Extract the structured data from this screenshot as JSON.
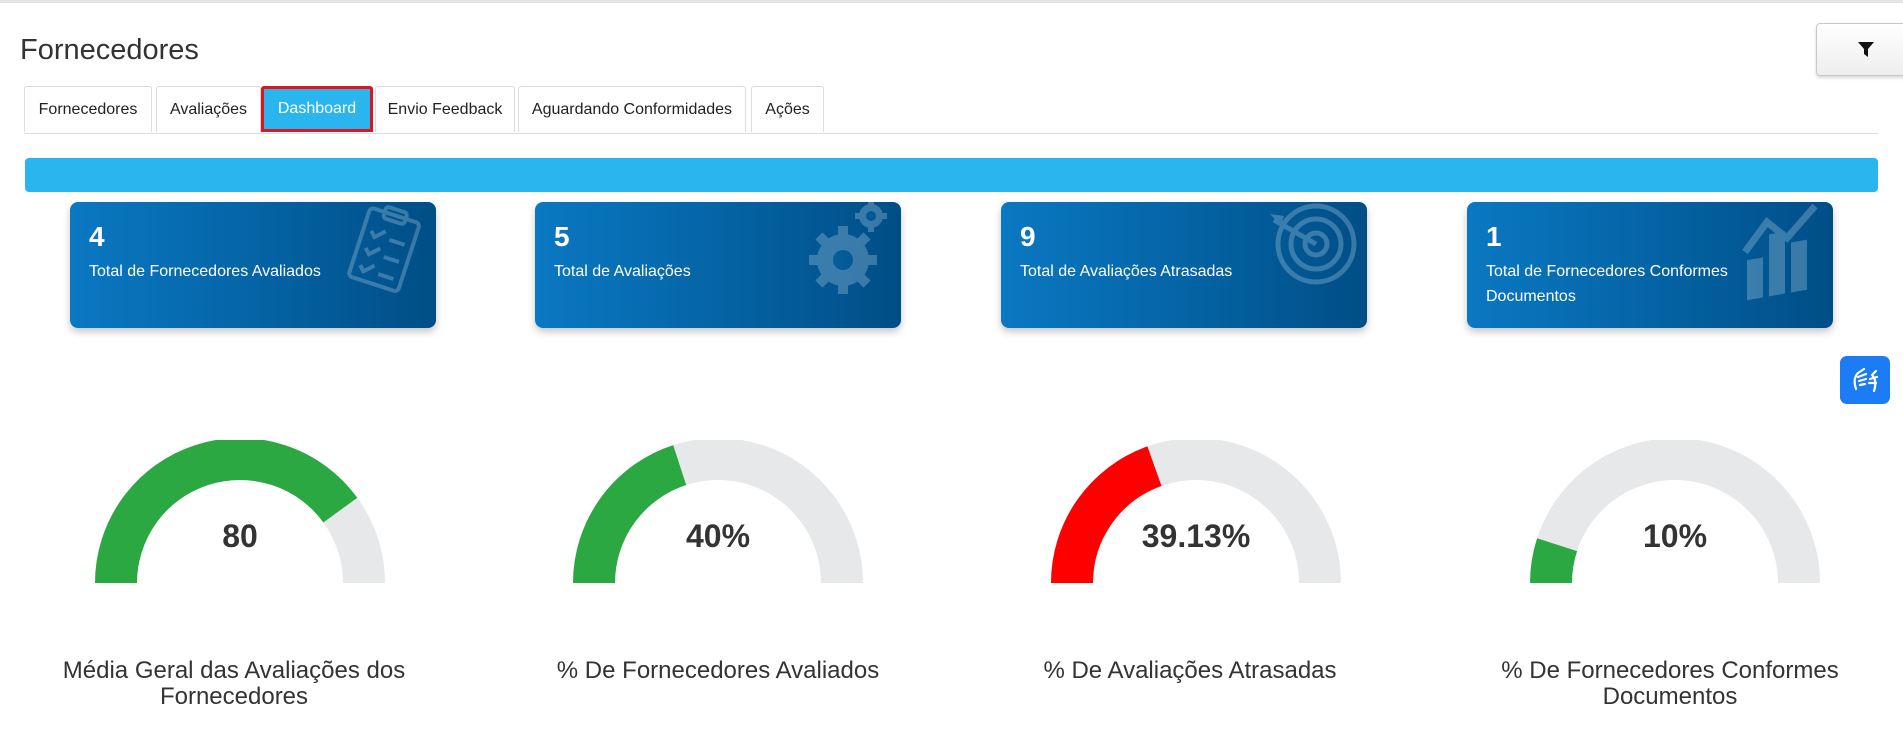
{
  "page": {
    "title": "Fornecedores"
  },
  "filter": {
    "icon": "filter-icon"
  },
  "tabs": [
    {
      "label": "Fornecedores",
      "active": false
    },
    {
      "label": "Avaliações",
      "active": false
    },
    {
      "label": "Dashboard",
      "active": true
    },
    {
      "label": "Envio Feedback",
      "active": false
    },
    {
      "label": "Aguardando Conformidades",
      "active": false
    },
    {
      "label": "Ações",
      "active": false
    }
  ],
  "cards": [
    {
      "value": "4",
      "label": "Total de Fornecedores Avaliados",
      "icon": "clipboard-checklist-icon"
    },
    {
      "value": "5",
      "label": "Total de Avaliações",
      "icon": "gears-icon"
    },
    {
      "value": "9",
      "label": "Total de Avaliações Atrasadas",
      "icon": "target-icon"
    },
    {
      "value": "1",
      "label": "Total de Fornecedores Conformes Documentos",
      "icon": "chart-icon"
    }
  ],
  "gauges": [
    {
      "value": "80",
      "title": "Média Geral das Avaliações dos Fornecedores",
      "fraction": 0.8,
      "color": "#2ca843"
    },
    {
      "value": "40%",
      "title": "% De Fornecedores Avaliados",
      "fraction": 0.4,
      "color": "#2ca843"
    },
    {
      "value": "39.13%",
      "title": "% De Avaliações Atrasadas",
      "fraction": 0.3913,
      "color": "#ff0000"
    },
    {
      "value": "10%",
      "title": "% De Fornecedores Conformes Documentos",
      "fraction": 0.1,
      "color": "#2ca843"
    }
  ],
  "colors": {
    "accent": "#2bb5ef",
    "card": "#0566a8",
    "track": "#e6e8ea",
    "highlight": "#e0151b"
  },
  "accessibility": {
    "icon": "sign-language-hands-icon"
  }
}
